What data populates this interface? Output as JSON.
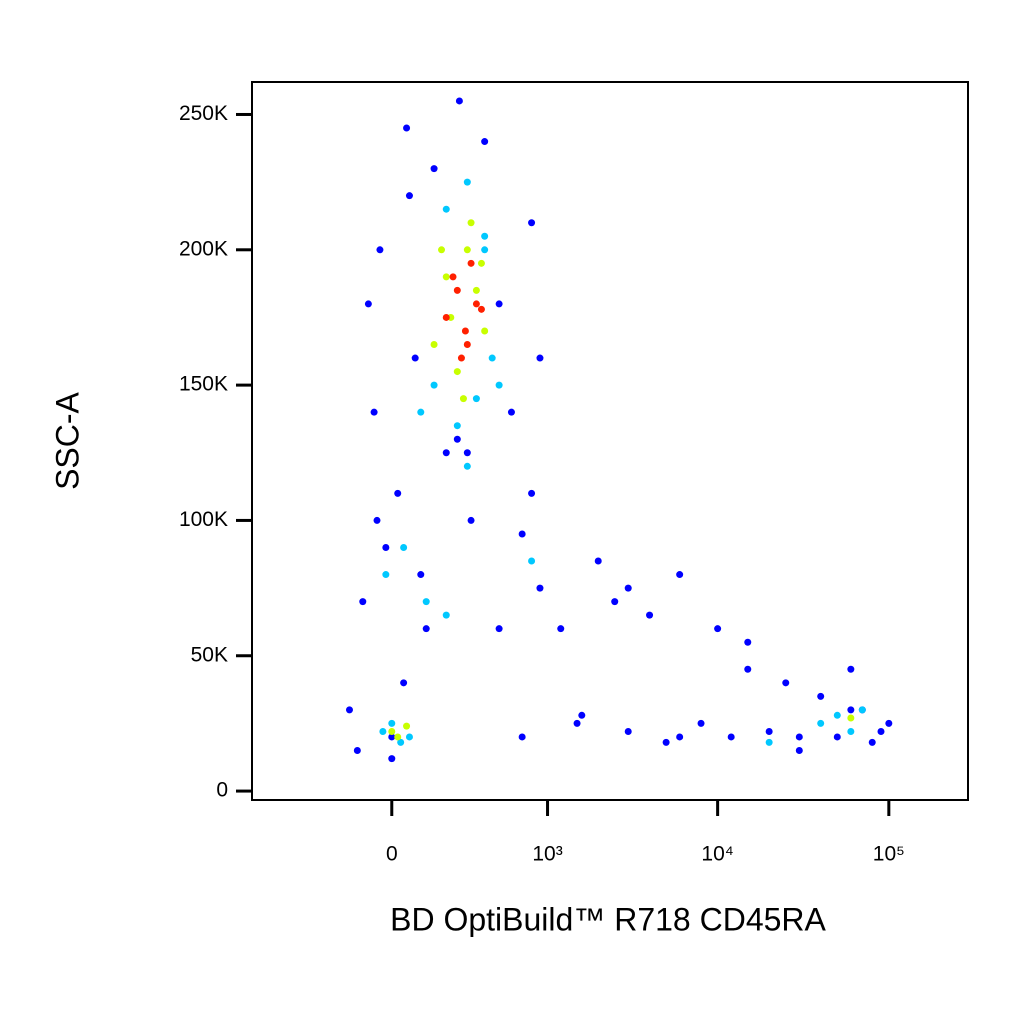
{
  "chart_data": {
    "type": "scatter",
    "x_label": "BD OptiBuild™ R718 CD45RA",
    "y_label": "SSC-A",
    "xscale": "biexponential",
    "xlim": [
      -800,
      290000
    ],
    "ylim": [
      -3300,
      262000
    ],
    "xticks": [
      0,
      {
        "value": 1000,
        "label": "10³"
      },
      {
        "value": 10000,
        "label": "10⁴"
      },
      {
        "value": 100000,
        "label": "10⁵"
      }
    ],
    "yticks": [
      0,
      {
        "value": 50000,
        "label": "50K"
      },
      {
        "value": 100000,
        "label": "100K"
      },
      {
        "value": 150000,
        "label": "150K"
      },
      {
        "value": 200000,
        "label": "200K"
      },
      {
        "value": 250000,
        "label": "250K"
      }
    ],
    "series": [
      {
        "color": "#0000ff",
        "x": [
          -150,
          -100,
          -60,
          -40,
          -20,
          0,
          20,
          50,
          80,
          120,
          150,
          200,
          260,
          320,
          400,
          500,
          600,
          700,
          800,
          900,
          1200,
          1600,
          2000,
          2500,
          3000,
          4000,
          5000,
          6000,
          8000,
          10000,
          12000,
          15000,
          20000,
          25000,
          30000,
          40000,
          50000,
          60000,
          70000,
          80000,
          100000,
          -120,
          -80,
          0,
          40,
          100,
          300,
          500,
          700,
          900,
          1500,
          3000,
          6000,
          15000,
          30000,
          60000,
          90000,
          -50,
          60,
          250,
          800
        ],
        "y": [
          30000,
          70000,
          140000,
          200000,
          90000,
          20000,
          110000,
          245000,
          160000,
          60000,
          230000,
          125000,
          255000,
          100000,
          240000,
          180000,
          140000,
          95000,
          210000,
          75000,
          60000,
          28000,
          85000,
          70000,
          22000,
          65000,
          18000,
          80000,
          25000,
          60000,
          20000,
          45000,
          22000,
          40000,
          15000,
          35000,
          20000,
          45000,
          30000,
          18000,
          25000,
          15000,
          180000,
          12000,
          40000,
          80000,
          125000,
          60000,
          20000,
          160000,
          25000,
          75000,
          20000,
          55000,
          20000,
          30000,
          22000,
          100000,
          220000,
          130000,
          110000
        ]
      },
      {
        "color": "#00c8ff",
        "x": [
          -30,
          0,
          30,
          60,
          100,
          150,
          200,
          250,
          300,
          350,
          400,
          450,
          -20,
          40,
          120,
          200,
          300,
          400,
          500,
          40000,
          50000,
          60000,
          70000,
          20000,
          800
        ],
        "y": [
          22000,
          25000,
          18000,
          20000,
          140000,
          150000,
          215000,
          135000,
          225000,
          145000,
          200000,
          160000,
          80000,
          90000,
          70000,
          65000,
          120000,
          205000,
          150000,
          25000,
          28000,
          22000,
          30000,
          18000,
          85000
        ]
      },
      {
        "color": "#c8ff00",
        "x": [
          0,
          20,
          50,
          150,
          200,
          250,
          300,
          350,
          400,
          180,
          280,
          380,
          220,
          320,
          60000
        ],
        "y": [
          22000,
          20000,
          24000,
          165000,
          190000,
          155000,
          200000,
          185000,
          170000,
          200000,
          145000,
          195000,
          175000,
          210000,
          27000
        ]
      },
      {
        "color": "#ff2000",
        "x": [
          200,
          250,
          300,
          350,
          270,
          320,
          230,
          290,
          380
        ],
        "y": [
          175000,
          185000,
          165000,
          180000,
          160000,
          195000,
          190000,
          170000,
          178000
        ]
      }
    ]
  }
}
